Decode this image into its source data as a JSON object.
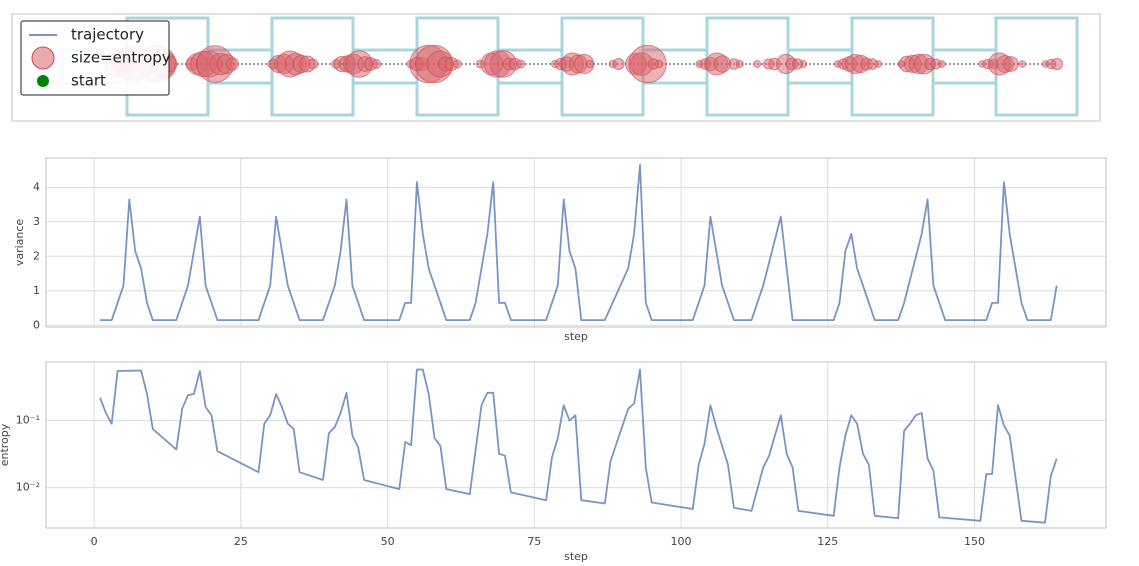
{
  "chart_data": [
    {
      "type": "bubble",
      "series": [
        {
          "name": "trajectory",
          "color": "#8e6fa0"
        },
        {
          "name": "size=entropy",
          "color": "#d9646c"
        },
        {
          "name": "start",
          "color": "#008000"
        }
      ],
      "x": [
        1,
        2,
        3,
        4,
        8,
        9,
        10,
        14,
        15,
        16,
        17,
        18,
        19,
        20,
        21,
        28,
        29,
        30,
        31,
        32,
        33,
        34,
        35,
        39,
        40,
        41,
        42,
        43,
        44,
        45,
        46,
        52,
        53,
        54,
        55,
        56,
        57,
        58,
        59,
        60,
        64,
        66,
        67,
        68,
        69,
        70,
        71,
        77,
        78,
        79,
        80,
        81,
        82,
        83,
        87,
        88,
        91,
        92,
        93,
        94,
        95,
        102,
        103,
        104,
        105,
        106,
        108,
        109,
        112,
        114,
        115,
        117,
        118,
        119,
        120,
        126,
        127,
        128,
        129,
        130,
        131,
        132,
        133,
        137,
        138,
        139,
        140,
        141,
        142,
        143,
        144,
        151,
        152,
        153,
        154,
        155,
        156,
        158,
        162,
        163,
        164
      ],
      "sizes": [
        0.22,
        0.13,
        0.09,
        0.55,
        0.56,
        0.25,
        0.075,
        0.037,
        0.15,
        0.24,
        0.25,
        0.55,
        0.16,
        0.12,
        0.035,
        0.017,
        0.09,
        0.12,
        0.25,
        0.16,
        0.09,
        0.075,
        0.017,
        0.013,
        0.065,
        0.08,
        0.13,
        0.26,
        0.06,
        0.04,
        0.013,
        0.0095,
        0.048,
        0.043,
        0.58,
        0.58,
        0.25,
        0.055,
        0.042,
        0.0095,
        0.008,
        0.17,
        0.26,
        0.26,
        0.032,
        0.03,
        0.0085,
        0.0065,
        0.028,
        0.055,
        0.17,
        0.1,
        0.12,
        0.0065,
        0.0058,
        0.025,
        0.15,
        0.18,
        0.58,
        0.02,
        0.006,
        0.0048,
        0.022,
        0.045,
        0.17,
        0.08,
        0.022,
        0.005,
        0.0045,
        0.02,
        0.03,
        0.12,
        0.032,
        0.02,
        0.0045,
        0.0038,
        0.02,
        0.06,
        0.12,
        0.09,
        0.032,
        0.022,
        0.0038,
        0.0035,
        0.07,
        0.09,
        0.12,
        0.13,
        0.027,
        0.018,
        0.0036,
        0.0032,
        0.016,
        0.016,
        0.17,
        0.085,
        0.06,
        0.0032,
        0.003,
        0.015,
        0.027
      ]
    },
    {
      "type": "line",
      "xlabel": "step",
      "ylabel": "variance",
      "color": "#4c72b0",
      "x": [
        1,
        3,
        5,
        6,
        7,
        8,
        9,
        10,
        14,
        16,
        18,
        19,
        21,
        28,
        30,
        31,
        33,
        35,
        39,
        41,
        42,
        43,
        44,
        46,
        52,
        53,
        54,
        55,
        56,
        57,
        60,
        64,
        65,
        67,
        68,
        69,
        70,
        71,
        77,
        79,
        80,
        81,
        82,
        83,
        87,
        91,
        92,
        93,
        94,
        95,
        102,
        104,
        105,
        107,
        109,
        112,
        114,
        117,
        119,
        126,
        127,
        128,
        129,
        130,
        132,
        133,
        137,
        138,
        141,
        142,
        143,
        145,
        152,
        153,
        154,
        155,
        156,
        158,
        159,
        163,
        164
      ],
      "values": [
        0.15,
        0.15,
        1.15,
        3.65,
        2.15,
        1.65,
        0.65,
        0.15,
        0.15,
        1.15,
        3.15,
        1.15,
        0.15,
        0.15,
        1.15,
        3.15,
        1.15,
        0.15,
        0.15,
        1.15,
        2.15,
        3.65,
        1.15,
        0.15,
        0.15,
        0.65,
        0.65,
        4.15,
        2.65,
        1.65,
        0.15,
        0.15,
        0.65,
        2.65,
        4.15,
        0.65,
        0.65,
        0.15,
        0.15,
        1.15,
        3.65,
        2.15,
        1.65,
        0.15,
        0.15,
        1.65,
        2.65,
        4.65,
        0.65,
        0.15,
        0.15,
        1.15,
        3.15,
        1.15,
        0.15,
        0.15,
        1.15,
        3.15,
        0.15,
        0.15,
        0.65,
        2.15,
        2.65,
        1.65,
        0.65,
        0.15,
        0.15,
        0.65,
        2.65,
        3.65,
        1.15,
        0.15,
        0.15,
        0.65,
        0.65,
        4.15,
        2.65,
        0.65,
        0.15,
        0.15,
        1.15
      ],
      "xlim": [
        -8.2,
        172.4
      ],
      "ylim": [
        -0.05,
        4.85
      ],
      "yticks": [
        0,
        1,
        2,
        3,
        4
      ],
      "xticks": [
        0,
        25,
        50,
        75,
        100,
        125,
        150
      ],
      "show_xtick_labels": false,
      "grid": true
    },
    {
      "type": "line",
      "xlabel": "step",
      "ylabel": "entropy",
      "color": "#4c72b0",
      "log_y": true,
      "x": [
        1,
        2,
        3,
        4,
        8,
        9,
        10,
        14,
        15,
        16,
        17,
        18,
        19,
        20,
        21,
        28,
        29,
        30,
        31,
        32,
        33,
        34,
        35,
        39,
        40,
        41,
        42,
        43,
        44,
        45,
        46,
        52,
        53,
        54,
        55,
        56,
        57,
        58,
        59,
        60,
        64,
        66,
        67,
        68,
        69,
        70,
        71,
        77,
        78,
        79,
        80,
        81,
        82,
        83,
        87,
        88,
        91,
        92,
        93,
        94,
        95,
        102,
        103,
        104,
        105,
        106,
        108,
        109,
        112,
        114,
        115,
        117,
        118,
        119,
        120,
        126,
        127,
        128,
        129,
        130,
        131,
        132,
        133,
        137,
        138,
        139,
        140,
        141,
        142,
        143,
        144,
        151,
        152,
        153,
        154,
        155,
        156,
        158,
        162,
        163,
        164
      ],
      "values": [
        0.22,
        0.13,
        0.09,
        0.55,
        0.56,
        0.25,
        0.075,
        0.037,
        0.15,
        0.24,
        0.25,
        0.55,
        0.16,
        0.12,
        0.035,
        0.017,
        0.09,
        0.12,
        0.25,
        0.16,
        0.09,
        0.075,
        0.017,
        0.013,
        0.065,
        0.08,
        0.13,
        0.26,
        0.06,
        0.04,
        0.013,
        0.0095,
        0.048,
        0.043,
        0.58,
        0.58,
        0.25,
        0.055,
        0.042,
        0.0095,
        0.008,
        0.17,
        0.26,
        0.26,
        0.032,
        0.03,
        0.0085,
        0.0065,
        0.028,
        0.055,
        0.17,
        0.1,
        0.12,
        0.0065,
        0.0058,
        0.025,
        0.15,
        0.18,
        0.58,
        0.02,
        0.006,
        0.0048,
        0.022,
        0.045,
        0.17,
        0.08,
        0.022,
        0.005,
        0.0045,
        0.02,
        0.03,
        0.12,
        0.032,
        0.02,
        0.0045,
        0.0038,
        0.02,
        0.06,
        0.12,
        0.09,
        0.032,
        0.022,
        0.0038,
        0.0035,
        0.07,
        0.09,
        0.12,
        0.13,
        0.027,
        0.018,
        0.0036,
        0.0032,
        0.016,
        0.016,
        0.17,
        0.085,
        0.06,
        0.0032,
        0.003,
        0.015,
        0.027
      ],
      "xlim": [
        -8.2,
        172.4
      ],
      "ylim": [
        0.0025,
        0.75
      ],
      "yticks": [
        {
          "value": 0.01,
          "label": "10⁻²"
        },
        {
          "value": 0.1,
          "label": "10⁻¹"
        }
      ],
      "xticks": [
        0,
        25,
        50,
        75,
        100,
        125,
        150
      ],
      "show_xtick_labels": true,
      "grid": true
    }
  ]
}
